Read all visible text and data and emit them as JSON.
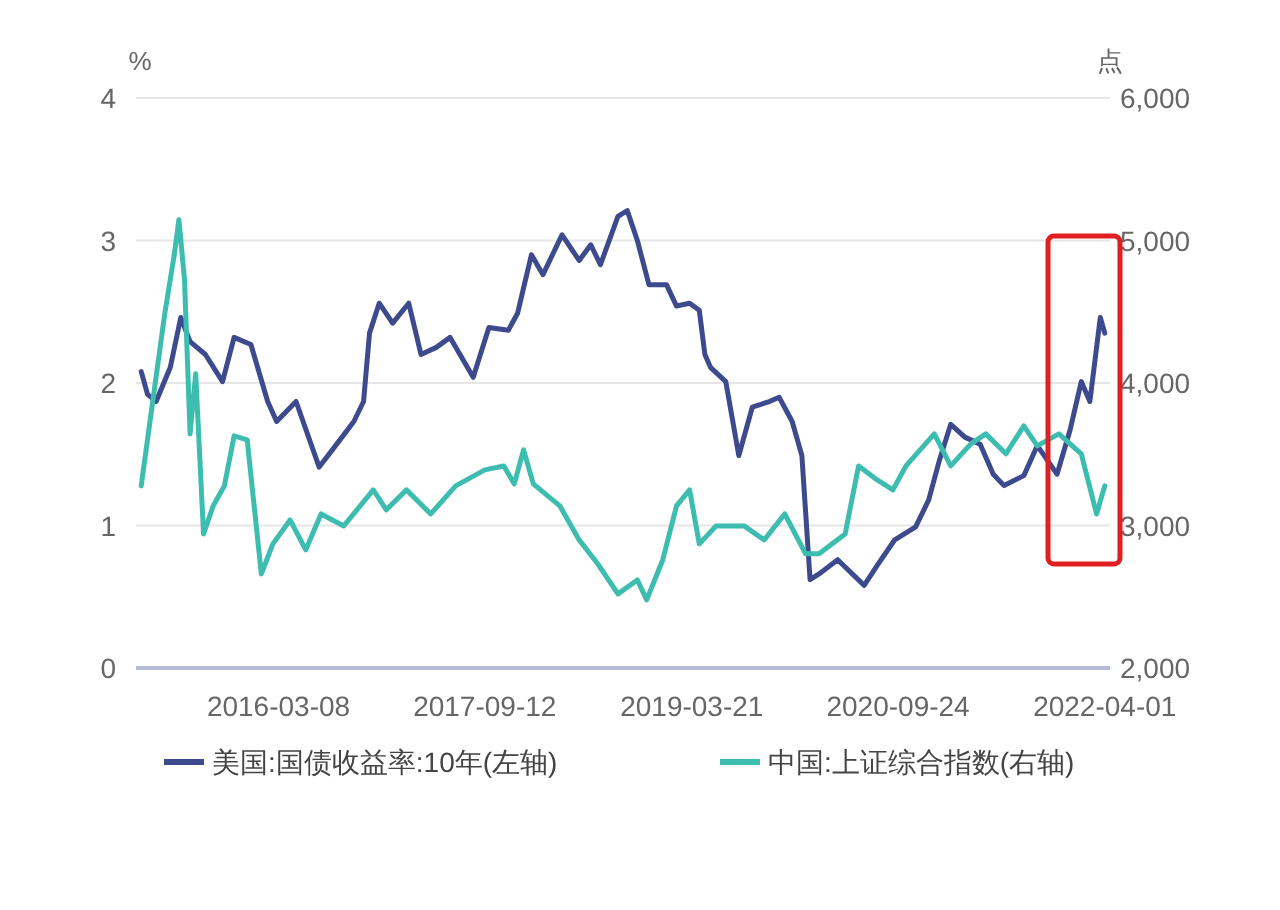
{
  "chart_data": {
    "type": "line",
    "xlabel": null,
    "ylabel": "%",
    "y2label": "点",
    "xlim": [
      "2015-02-20",
      "2022-04-15"
    ],
    "xticks": [
      {
        "value": "2016-03-08",
        "label": "2016-03-08"
      },
      {
        "value": "2017-09-12",
        "label": "2017-09-12"
      },
      {
        "value": "2019-03-21",
        "label": "2019-03-21"
      },
      {
        "value": "2020-09-24",
        "label": "2020-09-24"
      },
      {
        "value": "2022-04-01",
        "label": "2022-04-01"
      }
    ],
    "ylim": [
      0,
      4
    ],
    "yticks": [
      0,
      1,
      2,
      3,
      4
    ],
    "y2lim": [
      2000,
      6000
    ],
    "y2ticks": [
      {
        "value": 2000,
        "label": "2,000"
      },
      {
        "value": 3000,
        "label": "3,000"
      },
      {
        "value": 4000,
        "label": "4,000"
      },
      {
        "value": 5000,
        "label": "5,000"
      },
      {
        "value": 6000,
        "label": "6,000"
      }
    ],
    "grid": "y",
    "legend": "bottom",
    "series": [
      {
        "name": "美国:国债收益率:10年(左轴)",
        "color": "#3d4a8e",
        "x": [
          "2015-03-06",
          "2015-03-23",
          "2015-04-15",
          "2015-05-23",
          "2015-06-20",
          "2015-07-15",
          "2015-08-25",
          "2015-10-10",
          "2015-11-10",
          "2015-12-25",
          "2016-02-08",
          "2016-03-03",
          "2016-04-24",
          "2016-06-25",
          "2016-08-05",
          "2016-09-26",
          "2016-10-22",
          "2016-11-07",
          "2016-12-03",
          "2017-01-08",
          "2017-02-20",
          "2017-03-25",
          "2017-05-05",
          "2017-06-11",
          "2017-08-12",
          "2017-09-23",
          "2017-11-14",
          "2017-12-09",
          "2018-01-15",
          "2018-02-15",
          "2018-04-07",
          "2018-05-23",
          "2018-06-23",
          "2018-07-19",
          "2018-09-04",
          "2018-09-29",
          "2018-10-26",
          "2018-11-26",
          "2019-01-12",
          "2019-02-08",
          "2019-03-15",
          "2019-04-10",
          "2019-04-25",
          "2019-05-10",
          "2019-06-20",
          "2019-07-25",
          "2019-08-30",
          "2019-10-15",
          "2019-11-10",
          "2019-12-15",
          "2020-01-10",
          "2020-02-01",
          "2020-02-25",
          "2020-04-15",
          "2020-06-25",
          "2020-07-30",
          "2020-09-15",
          "2020-11-10",
          "2020-12-15",
          "2021-01-13",
          "2021-02-12",
          "2021-03-22",
          "2021-05-02",
          "2021-06-06",
          "2021-07-05",
          "2021-08-27",
          "2021-10-02",
          "2021-11-24",
          "2021-12-29",
          "2022-01-28",
          "2022-02-20",
          "2022-03-20",
          "2022-04-01"
        ],
        "values": [
          2.08,
          1.92,
          1.87,
          2.11,
          2.46,
          2.29,
          2.2,
          2.01,
          2.32,
          2.27,
          1.87,
          1.73,
          1.87,
          1.41,
          1.55,
          1.73,
          1.87,
          2.35,
          2.56,
          2.42,
          2.56,
          2.2,
          2.25,
          2.32,
          2.04,
          2.39,
          2.37,
          2.49,
          2.9,
          2.76,
          3.04,
          2.86,
          2.97,
          2.83,
          3.17,
          3.21,
          3.0,
          2.69,
          2.69,
          2.54,
          2.56,
          2.51,
          2.2,
          2.11,
          2.01,
          1.49,
          1.83,
          1.87,
          1.9,
          1.73,
          1.49,
          0.62,
          0.66,
          0.76,
          0.58,
          0.72,
          0.9,
          0.99,
          1.18,
          1.46,
          1.71,
          1.62,
          1.57,
          1.36,
          1.28,
          1.35,
          1.56,
          1.36,
          1.67,
          2.01,
          1.87,
          2.46,
          2.35
        ]
      },
      {
        "name": "中国:上证综合指数(右轴)",
        "color": "#3dbdb0",
        "axis": "y2",
        "x": [
          "2015-03-06",
          "2015-03-30",
          "2015-05-08",
          "2015-06-03",
          "2015-06-15",
          "2015-06-30",
          "2015-07-15",
          "2015-07-30",
          "2015-08-20",
          "2015-09-15",
          "2015-10-15",
          "2015-11-10",
          "2015-12-15",
          "2016-01-22",
          "2016-02-22",
          "2016-04-08",
          "2016-05-20",
          "2016-06-30",
          "2016-08-30",
          "2016-11-17",
          "2016-12-22",
          "2017-02-14",
          "2017-04-20",
          "2017-06-26",
          "2017-09-12",
          "2017-11-02",
          "2017-11-30",
          "2017-12-25",
          "2018-01-20",
          "2018-04-01",
          "2018-05-23",
          "2018-07-12",
          "2018-09-04",
          "2018-10-26",
          "2018-11-20",
          "2019-01-02",
          "2019-02-08",
          "2019-03-15",
          "2019-04-10",
          "2019-05-25",
          "2019-08-08",
          "2019-10-01",
          "2019-11-25",
          "2020-01-20",
          "2020-02-25",
          "2020-05-05",
          "2020-06-10",
          "2020-07-30",
          "2020-09-10",
          "2020-10-15",
          "2020-12-30",
          "2021-02-12",
          "2021-04-07",
          "2021-05-17",
          "2021-07-10",
          "2021-08-27",
          "2021-10-02",
          "2021-11-29",
          "2022-01-28",
          "2022-03-10",
          "2022-04-01"
        ],
        "values": [
          3278,
          3740,
          4485,
          4907,
          5146,
          4725,
          3643,
          4065,
          2941,
          3138,
          3278,
          3629,
          3601,
          2660,
          2871,
          3039,
          2829,
          3081,
          2997,
          3250,
          3110,
          3250,
          3081,
          3278,
          3390,
          3418,
          3292,
          3531,
          3292,
          3138,
          2899,
          2730,
          2520,
          2618,
          2478,
          2758,
          3138,
          3250,
          2871,
          2997,
          2997,
          2899,
          3081,
          2801,
          2801,
          2941,
          3418,
          3320,
          3250,
          3418,
          3643,
          3418,
          3573,
          3643,
          3503,
          3699,
          3559,
          3643,
          3503,
          3081,
          3278
        ]
      }
    ]
  }
}
